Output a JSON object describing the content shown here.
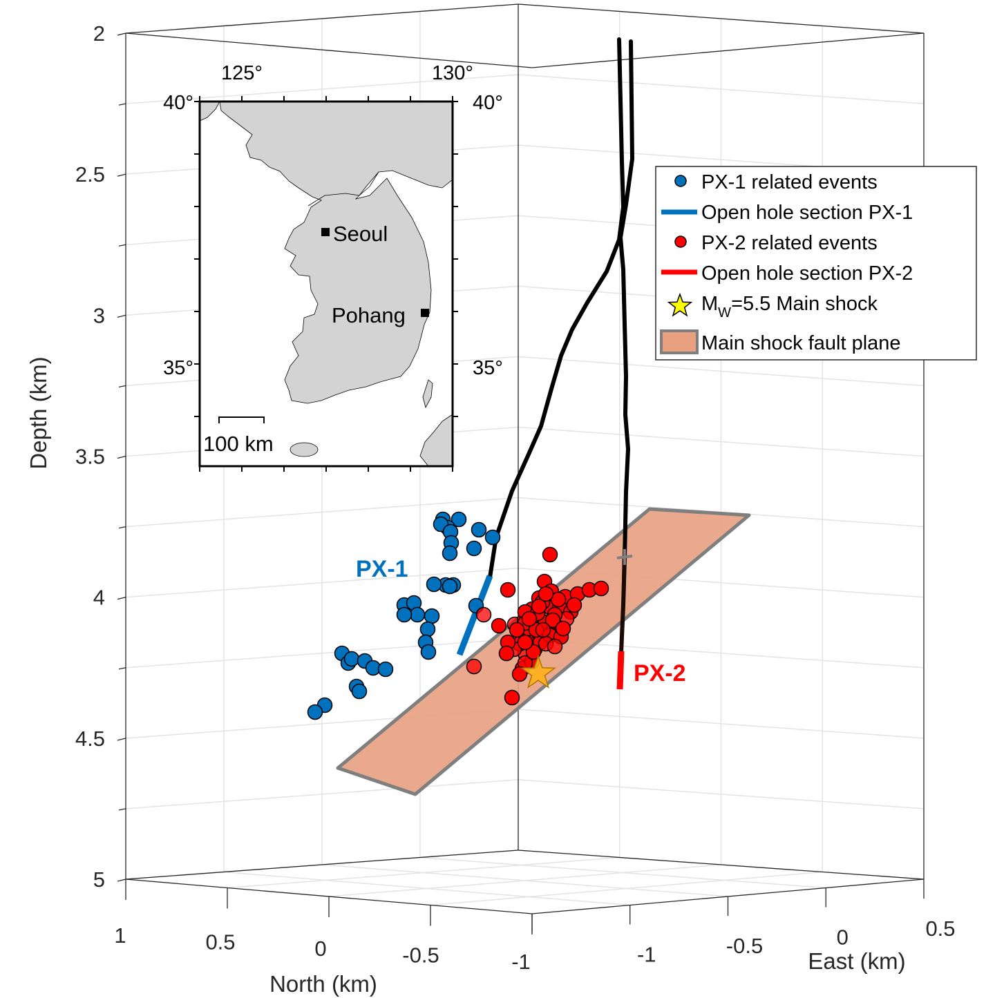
{
  "chart_data": {
    "type": "scatter",
    "title": "",
    "axes": {
      "depth": {
        "label": "Depth (km)",
        "ticks": [
          "2",
          "2.5",
          "3",
          "3.5",
          "4",
          "4.5",
          "5"
        ],
        "range": [
          2,
          5
        ],
        "reversed": true
      },
      "north": {
        "label": "North (km)",
        "ticks": [
          "1",
          "0.5",
          "0",
          "-0.5",
          "-1"
        ],
        "range": [
          -1,
          1
        ]
      },
      "east": {
        "label": "East (km)",
        "ticks": [
          "-1",
          "-0.5",
          "0",
          "0.5"
        ],
        "range": [
          -1.5,
          0.5
        ]
      },
      "grid": true
    },
    "legend": {
      "placement": "top-right",
      "entries": [
        {
          "key": "px1_events",
          "label": "PX-1 related events",
          "marker": "circle",
          "color": "#0072BD"
        },
        {
          "key": "px1_open",
          "label": "Open hole section PX-1",
          "marker": "line",
          "color": "#0072BD"
        },
        {
          "key": "px2_events",
          "label": "PX-2 related events",
          "marker": "circle",
          "color": "#FF0000"
        },
        {
          "key": "px2_open",
          "label": "Open hole section PX-2",
          "marker": "line",
          "color": "#FF0000"
        },
        {
          "key": "main_shock",
          "label_prefix": "M",
          "label_sub": "W",
          "label_suffix": "=5.5 Main shock",
          "marker": "star",
          "color": "#FFFF00"
        },
        {
          "key": "fault_plane",
          "label": "Main shock fault plane",
          "marker": "rect",
          "color": "#E8A07F"
        }
      ]
    },
    "wells": [
      {
        "name": "PX-1",
        "color": "#0072BD"
      },
      {
        "name": "PX-2",
        "color": "#FF0000"
      }
    ],
    "series": [
      {
        "key": "px1_events",
        "color": "#0072BD",
        "count": 33
      },
      {
        "key": "px2_events",
        "color": "#FF0000",
        "count": 60
      }
    ],
    "main_shock": {
      "magnitude": 5.5,
      "approx_depth_km": 4.27
    },
    "inset": {
      "lon_ticks": [
        "125°",
        "130°"
      ],
      "lat_ticks": [
        "40°",
        "35°"
      ],
      "cities": [
        {
          "name": "Seoul"
        },
        {
          "name": "Pohang"
        }
      ],
      "scale_bar": "100 km"
    }
  }
}
